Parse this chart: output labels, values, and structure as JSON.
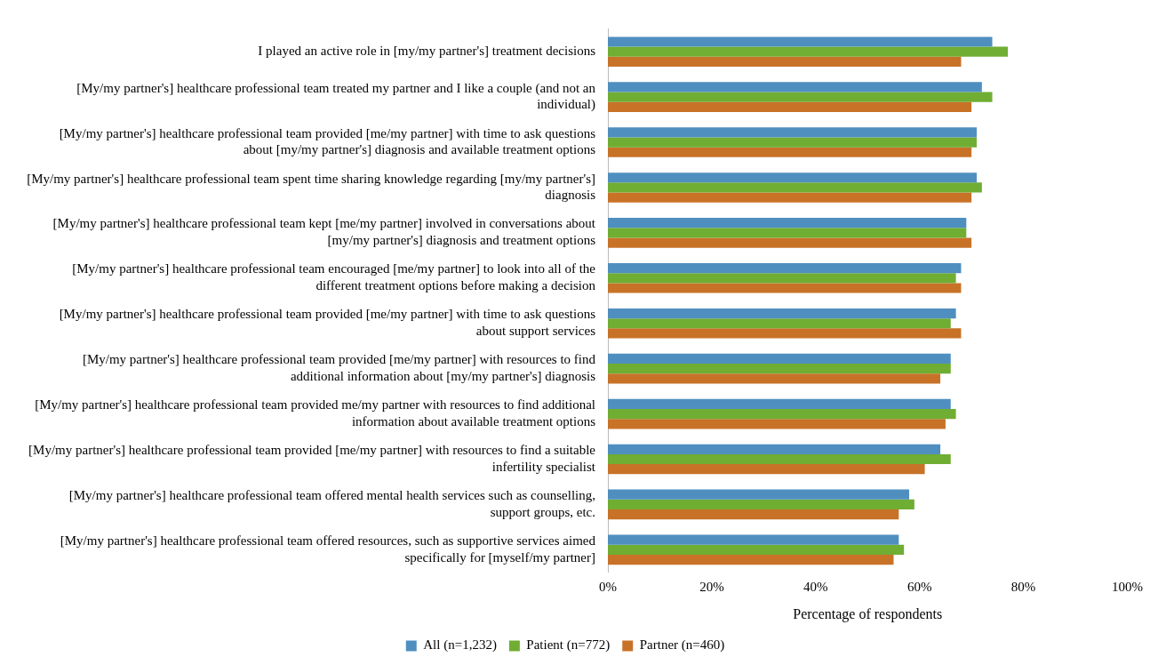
{
  "chart_data": {
    "type": "bar",
    "orientation": "horizontal",
    "xlabel": "Percentage of respondents",
    "categories": [
      "I played an active role in [my/my partner's] treatment decisions",
      "[My/my partner's] healthcare professional team treated my partner and I like a couple (and not an individual)",
      "[My/my partner's] healthcare professional team provided [me/my partner] with time to ask questions about [my/my partner's] diagnosis and available treatment options",
      "[My/my partner's] healthcare professional team spent time sharing knowledge regarding [my/my partner's] diagnosis",
      "[My/my partner's] healthcare professional team kept [me/my partner] involved in conversations about [my/my partner's] diagnosis and treatment options",
      "[My/my partner's] healthcare professional team encouraged [me/my partner] to look into all of the different treatment options before making a decision",
      "[My/my partner's] healthcare professional team provided [me/my partner] with time to ask questions about support services",
      "[My/my partner's] healthcare professional team provided [me/my partner] with resources to find additional information about [my/my partner's] diagnosis",
      "[My/my partner's] healthcare professional team provided me/my partner with resources to find additional information about available treatment options",
      "[My/my partner's] healthcare professional team provided [me/my partner] with resources to find a suitable infertility specialist",
      "[My/my partner's] healthcare professional team offered mental health services such as counselling, support groups, etc.",
      "[My/my partner's] healthcare professional team offered resources, such as supportive services aimed specifically for [myself/my partner]"
    ],
    "series": [
      {
        "name": "All (n=1,232)",
        "color": "#4f8fc0",
        "values": [
          74,
          72,
          71,
          71,
          69,
          68,
          67,
          66,
          66,
          64,
          58,
          56
        ]
      },
      {
        "name": "Patient (n=772)",
        "color": "#70ad33",
        "values": [
          77,
          74,
          71,
          72,
          69,
          67,
          66,
          66,
          67,
          66,
          59,
          57
        ]
      },
      {
        "name": "Partner (n=460)",
        "color": "#c87228",
        "values": [
          68,
          70,
          70,
          70,
          70,
          68,
          68,
          64,
          65,
          61,
          56,
          55
        ]
      }
    ],
    "xlim": [
      0,
      100
    ],
    "xticks": [
      {
        "value": 0,
        "label": "0%"
      },
      {
        "value": 20,
        "label": "20%"
      },
      {
        "value": 40,
        "label": "40%"
      },
      {
        "value": 60,
        "label": "60%"
      },
      {
        "value": 80,
        "label": "80%"
      },
      {
        "value": 100,
        "label": "100%"
      }
    ],
    "grid": false,
    "legend": "bottom"
  }
}
